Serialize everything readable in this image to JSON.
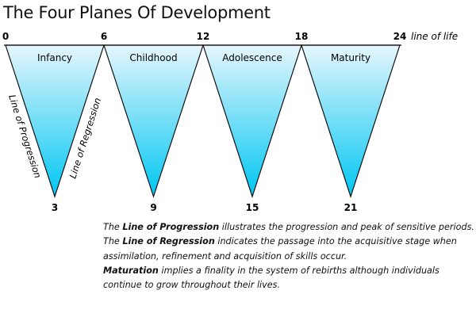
{
  "title": "The Four Planes Of Development",
  "axis_label": "line of life",
  "top_ticks": [
    "0",
    "6",
    "12",
    "18",
    "24"
  ],
  "planes": [
    {
      "name": "Infancy",
      "peak": "3"
    },
    {
      "name": "Childhood",
      "peak": "9"
    },
    {
      "name": "Adolescence",
      "peak": "15"
    },
    {
      "name": "Maturity",
      "peak": "21"
    }
  ],
  "edge_labels": {
    "progression": "Line of Progression",
    "regression": "Line of Regression"
  },
  "colors": {
    "top": "#e6f6fd",
    "bottom": "#00c6f2",
    "line": "#111111"
  },
  "notes": [
    {
      "pre": "The ",
      "bold": "Line of Progression",
      "post": " illustrates the progression and peak of sensitive periods."
    },
    {
      "pre": "The ",
      "bold": "Line of Regression",
      "post": " indicates the passage into the acquisitive stage when assimilation, refinement and acquisition of skills occur."
    },
    {
      "pre": "",
      "bold": "Maturation",
      "post": " implies a finality in the system of rebirths although individuals continue to grow throughout their lives."
    }
  ]
}
